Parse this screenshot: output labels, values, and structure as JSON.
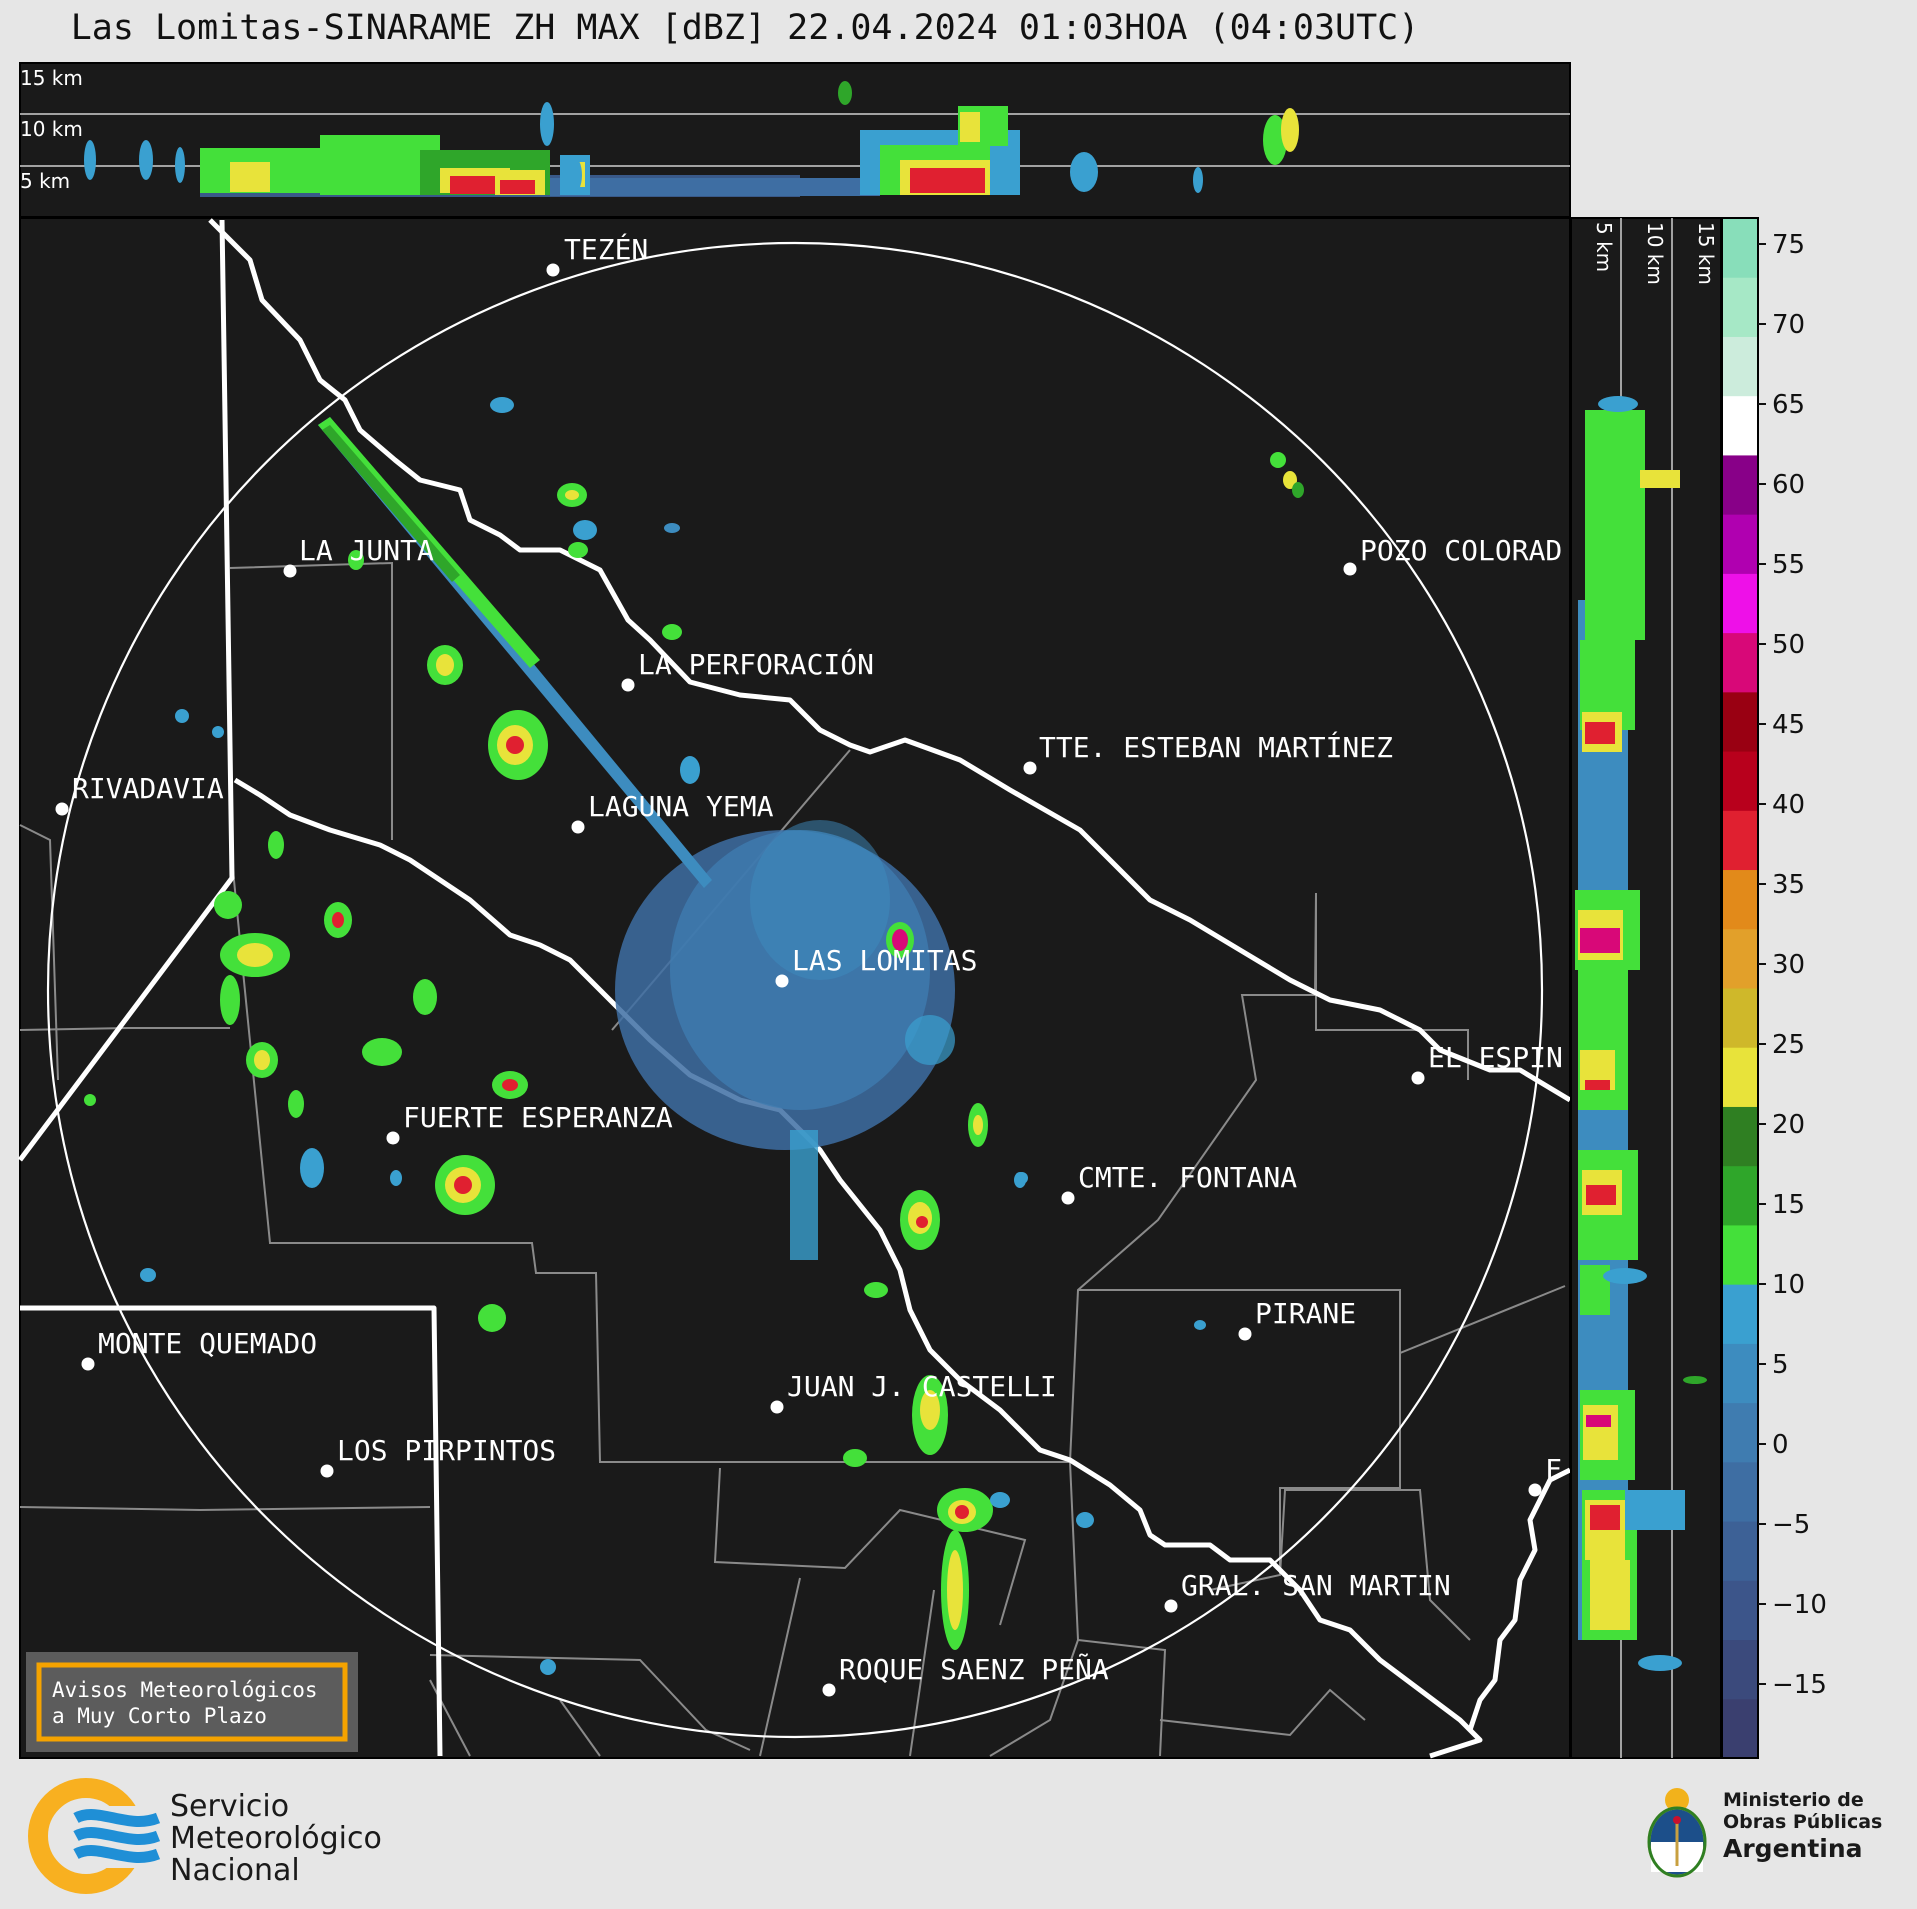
{
  "title": "Las Lomitas-SINARAME ZH MAX [dBZ] 22.04.2024 01:03HOA (04:03UTC)",
  "top_profile": {
    "labels": [
      "15 km",
      "10 km",
      "5 km"
    ]
  },
  "side_profile": {
    "labels": [
      "5 km",
      "10 km",
      "15 km"
    ]
  },
  "colorbar": {
    "ticks": [
      "75",
      "70",
      "65",
      "60",
      "55",
      "50",
      "45",
      "40",
      "35",
      "30",
      "25",
      "20",
      "15",
      "10",
      "5",
      "0",
      "−5",
      "−10",
      "−15"
    ],
    "bands": [
      {
        "color": "#3a3f6f"
      },
      {
        "color": "#3b4a7c"
      },
      {
        "color": "#3c558a"
      },
      {
        "color": "#3d6196"
      },
      {
        "color": "#3e6ea3"
      },
      {
        "color": "#3f7cb0"
      },
      {
        "color": "#3d8cbf"
      },
      {
        "color": "#3aa0d0"
      },
      {
        "color": "#44e03a"
      },
      {
        "color": "#2fa62a"
      },
      {
        "color": "#2f7f22"
      },
      {
        "color": "#e8e33a"
      },
      {
        "color": "#cfb82a"
      },
      {
        "color": "#e2a02a"
      },
      {
        "color": "#e28a1a"
      },
      {
        "color": "#e02030"
      },
      {
        "color": "#b8001c"
      },
      {
        "color": "#990012"
      },
      {
        "color": "#d80878"
      },
      {
        "color": "#ee10e8"
      },
      {
        "color": "#b000b0"
      },
      {
        "color": "#880088"
      },
      {
        "color": "#ffffff"
      },
      {
        "color": "#ccecdc"
      },
      {
        "color": "#a6e8c6"
      },
      {
        "color": "#88deba"
      }
    ]
  },
  "cities": [
    {
      "name": "TEZÉN"
    },
    {
      "name": "LA JUNTA"
    },
    {
      "name": "POZO COLORAD"
    },
    {
      "name": "LA PERFORACIÓN"
    },
    {
      "name": "TTE. ESTEBAN MARTÍNEZ"
    },
    {
      "name": "RIVADAVIA"
    },
    {
      "name": "LAGUNA YEMA"
    },
    {
      "name": "LAS LOMITAS"
    },
    {
      "name": "EL ESPIN"
    },
    {
      "name": "FUERTE ESPERANZA"
    },
    {
      "name": "CMTE. FONTANA"
    },
    {
      "name": "PIRANE"
    },
    {
      "name": "MONTE QUEMADO"
    },
    {
      "name": "JUAN J. CASTELLI"
    },
    {
      "name": "LOS PIRPINTOS"
    },
    {
      "name": "GRAL. SAN MARTIN"
    },
    {
      "name": "ROQUE SAENZ PEÑA"
    },
    {
      "name": "F"
    }
  ],
  "notice": {
    "line1": "Avisos Meteorológicos",
    "line2": "a Muy Corto Plazo"
  },
  "footer_left": {
    "line1": "Servicio",
    "line2": "Meteorológico",
    "line3": "Nacional"
  },
  "footer_right": {
    "line1": "Ministerio de",
    "line2": "Obras Públicas",
    "line3": "Argentina"
  },
  "colors": {
    "panel": "#1a1a1a",
    "accent_orange": "#f5a300",
    "smn_blue": "#1f8fd6",
    "smn_yellow": "#f8b020",
    "nation_blue": "#1c4f8a"
  }
}
